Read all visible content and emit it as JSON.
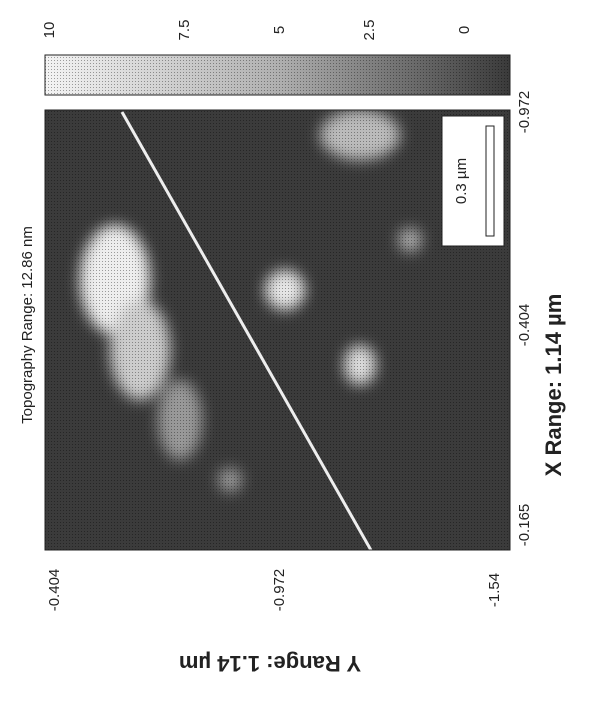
{
  "figure": {
    "title": "Topography Range: 12.86 nm",
    "x_range_label": "X Range: 1.14 µm",
    "y_range_label": "Y Range: 1.14 µm",
    "x_ticks": [
      "-0.165",
      "-0.404",
      "-0.972"
    ],
    "y_ticks": [
      "-0.404",
      "-0.972",
      "-1.54"
    ],
    "colorbar_ticks": [
      "10",
      "7.5",
      "5",
      "2.5",
      "0"
    ],
    "scale_bar": "0.3 µm"
  }
}
